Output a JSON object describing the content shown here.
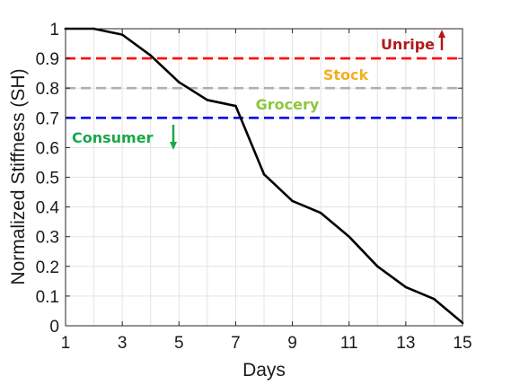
{
  "chart_data": {
    "type": "line",
    "xlabel": "Days",
    "ylabel": "Normalized Stiffness (SH)",
    "xlim": [
      1,
      15
    ],
    "ylim": [
      0,
      1
    ],
    "xticks": [
      "1",
      "3",
      "5",
      "7",
      "9",
      "11",
      "13",
      "15"
    ],
    "yticks": [
      "0",
      "0.1",
      "0.2",
      "0.3",
      "0.4",
      "0.5",
      "0.6",
      "0.7",
      "0.8",
      "0.9",
      "1"
    ],
    "grid": true,
    "series": [
      {
        "color": "#000000",
        "x": [
          1,
          2,
          3,
          4,
          5,
          6,
          7,
          8,
          9,
          10,
          11,
          12,
          13,
          14,
          15
        ],
        "y": [
          1.0,
          1.0,
          0.98,
          0.91,
          0.82,
          0.76,
          0.74,
          0.51,
          0.42,
          0.38,
          0.3,
          0.2,
          0.13,
          0.09,
          0.01
        ]
      }
    ],
    "thresholds": [
      {
        "label": "Unripe",
        "value": 0.9,
        "color": "#ff0000",
        "label_color": "#b01a1a",
        "arrow": "up"
      },
      {
        "label": "Stock",
        "value": 0.8,
        "color": "#b0b0b0",
        "label_color": "#f2b01e",
        "arrow": "none"
      },
      {
        "label": "Grocery",
        "value": 0.7,
        "color": "#0000ee",
        "label_color": "#8cc63f",
        "arrow": "none"
      },
      {
        "label": "Consumer",
        "value": 0.7,
        "color": "#0000ee",
        "label_color": "#1aa84a",
        "arrow": "down"
      }
    ]
  }
}
